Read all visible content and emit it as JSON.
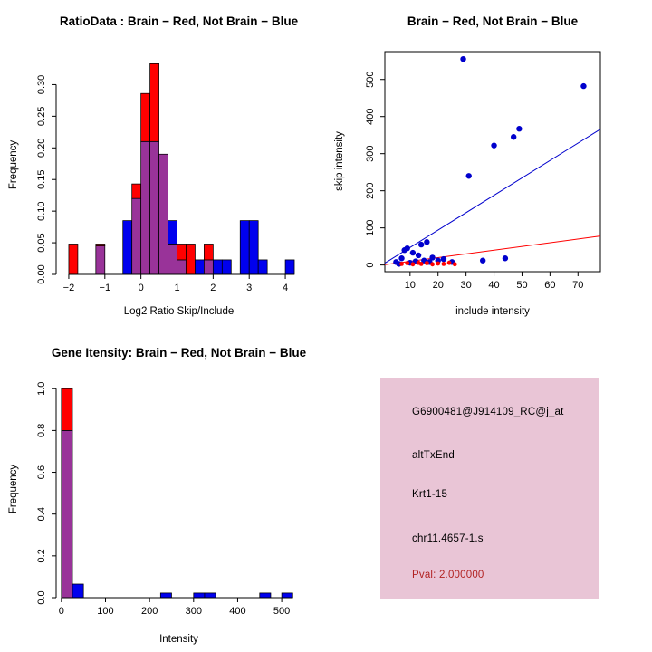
{
  "chart_data": [
    {
      "id": "ratio_hist",
      "type": "histogram",
      "title": "RatioData : Brain − Red, Not Brain − Blue",
      "xlabel": "Log2 Ratio Skip/Include",
      "ylabel": "Frequency",
      "xlim": [
        -2.35,
        4.45
      ],
      "ylim": [
        0,
        0.345
      ],
      "xticks": [
        -2,
        -1,
        0,
        1,
        2,
        3,
        4
      ],
      "xtick_labels": [
        "−2",
        "−1",
        "0",
        "1",
        "2",
        "3",
        "4"
      ],
      "yticks": [
        0,
        0.05,
        0.1,
        0.15,
        0.2,
        0.25,
        0.3
      ],
      "ytick_labels": [
        "0.00",
        "0.05",
        "0.10",
        "0.15",
        "0.20",
        "0.25",
        "0.30"
      ],
      "bin_width": 0.25,
      "bins_start": [
        -2,
        -1.75,
        -1.5,
        -1.25,
        -1,
        -0.75,
        -0.5,
        -0.25,
        0,
        0.25,
        0.5,
        0.75,
        1,
        1.25,
        1.5,
        1.75,
        2,
        2.25,
        2.5,
        2.75,
        3,
        3.25,
        3.5,
        3.75,
        4
      ],
      "overlap_color": "#993399",
      "grid": false,
      "series": [
        {
          "name": "Brain (Red)",
          "color": "#FF0000",
          "values": [
            0.048,
            0,
            0,
            0.048,
            0,
            0,
            0,
            0.143,
            0.286,
            0.333,
            0.19,
            0.048,
            0.048,
            0.048,
            0,
            0.048,
            0,
            0,
            0,
            0,
            0,
            0,
            0,
            0,
            0
          ]
        },
        {
          "name": "Not Brain (Blue)",
          "color": "#0000EE",
          "values": [
            0,
            0,
            0,
            0.045,
            0,
            0,
            0.085,
            0.12,
            0.21,
            0.21,
            0.19,
            0.085,
            0.023,
            0,
            0.023,
            0.023,
            0.023,
            0.023,
            0,
            0.085,
            0.085,
            0.023,
            0,
            0,
            0.023
          ]
        }
      ]
    },
    {
      "id": "scatter",
      "type": "scatter",
      "title": "Brain − Red, Not Brain − Blue",
      "xlabel": "include intensity",
      "ylabel": "skip intensity",
      "xlim": [
        1,
        78
      ],
      "ylim": [
        -18,
        575
      ],
      "xticks": [
        10,
        20,
        30,
        40,
        50,
        60,
        70
      ],
      "xtick_labels": [
        "10",
        "20",
        "30",
        "40",
        "50",
        "60",
        "70"
      ],
      "yticks": [
        0,
        100,
        200,
        300,
        400,
        500
      ],
      "ytick_labels": [
        "0",
        "100",
        "200",
        "300",
        "400",
        "500"
      ],
      "grid": false,
      "box": true,
      "series": [
        {
          "name": "Not Brain (Blue)",
          "color": "#0000CD",
          "point_radius": 3.2,
          "points": [
            [
              5,
              8
            ],
            [
              6,
              3
            ],
            [
              7,
              18
            ],
            [
              8,
              40
            ],
            [
              9,
              45
            ],
            [
              10,
              6
            ],
            [
              11,
              33
            ],
            [
              12,
              10
            ],
            [
              13,
              26
            ],
            [
              14,
              55
            ],
            [
              15,
              12
            ],
            [
              16,
              62
            ],
            [
              17,
              8
            ],
            [
              18,
              20
            ],
            [
              20,
              12
            ],
            [
              22,
              16
            ],
            [
              25,
              8
            ],
            [
              29,
              555
            ],
            [
              31,
              240
            ],
            [
              36,
              12
            ],
            [
              40,
              322
            ],
            [
              44,
              18
            ],
            [
              47,
              345
            ],
            [
              49,
              367
            ],
            [
              72,
              482
            ]
          ]
        },
        {
          "name": "Brain (Red)",
          "color": "#FF0000",
          "point_radius": 2.4,
          "points": [
            [
              7,
              3
            ],
            [
              9,
              5
            ],
            [
              11,
              2
            ],
            [
              13,
              6
            ],
            [
              14,
              3
            ],
            [
              16,
              5
            ],
            [
              18,
              2
            ],
            [
              20,
              4
            ],
            [
              22,
              3
            ],
            [
              24,
              6
            ],
            [
              26,
              2
            ]
          ]
        }
      ],
      "lines": [
        {
          "name": "not-brain-fit-line",
          "color": "#0000CD",
          "from": [
            1,
            5
          ],
          "to": [
            78,
            366
          ]
        },
        {
          "name": "brain-fit-line",
          "color": "#FF0000",
          "from": [
            1,
            1
          ],
          "to": [
            78,
            78
          ]
        }
      ]
    },
    {
      "id": "gene_hist",
      "type": "histogram",
      "title": "Gene Itensity: Brain − Red, Not Brain − Blue",
      "xlabel": "Intensity",
      "ylabel": "Frequency",
      "xlim": [
        -12,
        545
      ],
      "ylim": [
        0,
        1.04
      ],
      "xticks": [
        0,
        100,
        200,
        300,
        400,
        500
      ],
      "xtick_labels": [
        "0",
        "100",
        "200",
        "300",
        "400",
        "500"
      ],
      "yticks": [
        0,
        0.2,
        0.4,
        0.6,
        0.8,
        1.0
      ],
      "ytick_labels": [
        "0.0",
        "0.2",
        "0.4",
        "0.6",
        "0.8",
        "1.0"
      ],
      "bin_width": 25,
      "bins_start": [
        0,
        25,
        50,
        75,
        100,
        125,
        150,
        175,
        200,
        225,
        250,
        275,
        300,
        325,
        350,
        375,
        400,
        425,
        450,
        475,
        500
      ],
      "overlap_color": "#993399",
      "grid": false,
      "series": [
        {
          "name": "Brain (Red)",
          "color": "#FF0000",
          "values": [
            1.0,
            0,
            0,
            0,
            0,
            0,
            0,
            0,
            0,
            0,
            0,
            0,
            0,
            0,
            0,
            0,
            0,
            0,
            0,
            0,
            0
          ]
        },
        {
          "name": "Not Brain (Blue)",
          "color": "#0000EE",
          "values": [
            0.8,
            0.065,
            0,
            0,
            0,
            0,
            0,
            0,
            0,
            0.022,
            0,
            0,
            0.022,
            0.022,
            0,
            0,
            0,
            0,
            0.022,
            0,
            0.022
          ]
        }
      ]
    }
  ],
  "info_box": {
    "bg": "#E9C5D6",
    "lines": [
      {
        "text": "G6900481@J914109_RC@j_at",
        "color": "#000000"
      },
      {
        "text": "altTxEnd",
        "color": "#000000"
      },
      {
        "text": "Krt1-15",
        "color": "#000000"
      },
      {
        "text": "chr11.4657-1.s",
        "color": "#000000"
      },
      {
        "text": "Pval: 2.000000",
        "color": "#B22222"
      }
    ]
  }
}
